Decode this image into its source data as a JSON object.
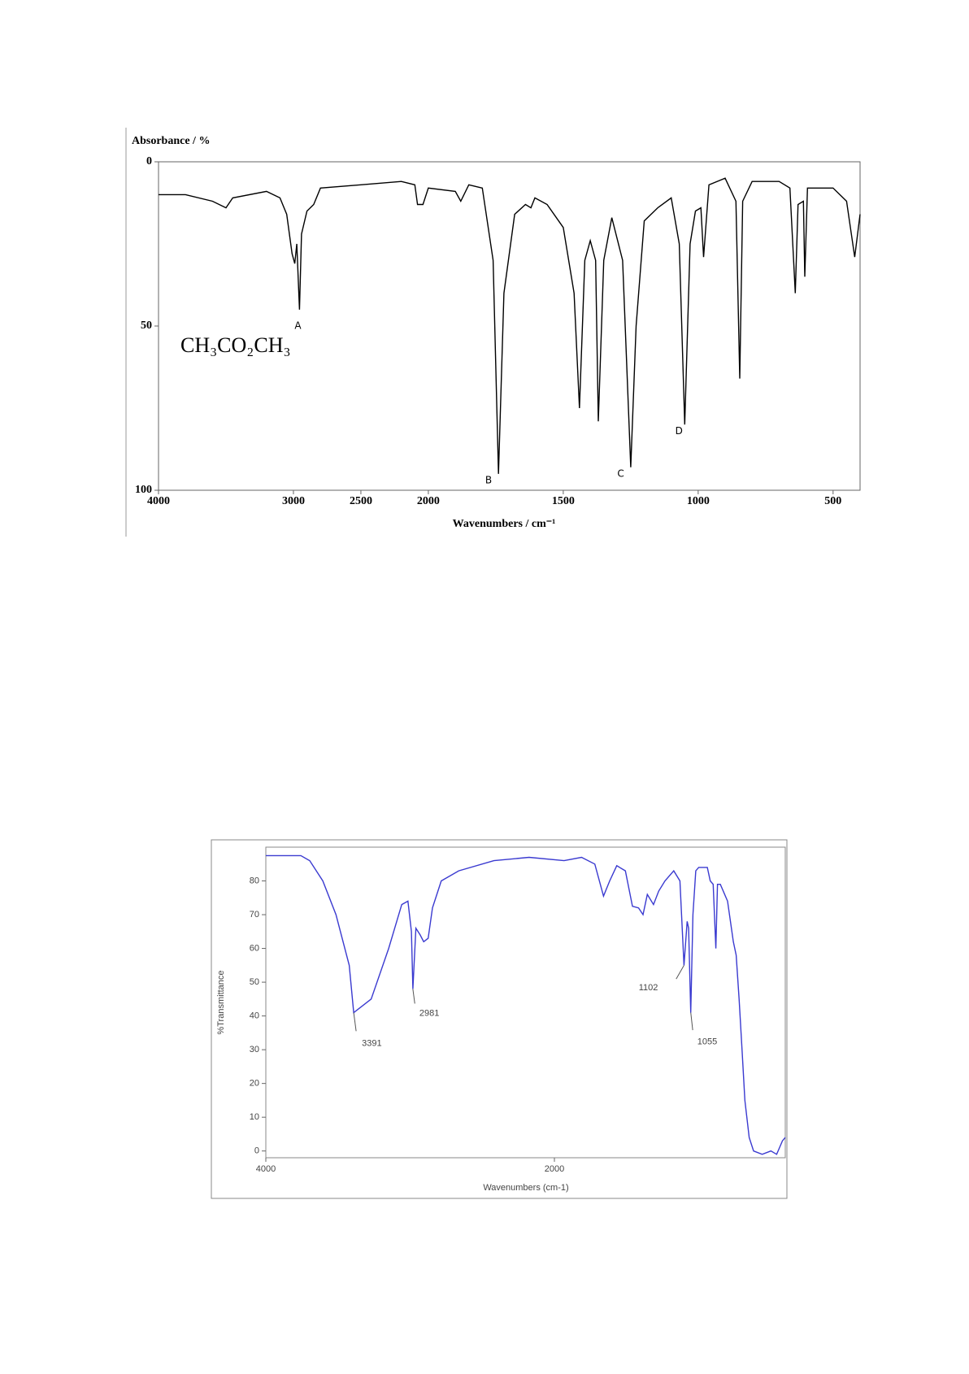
{
  "chart_data": [
    {
      "type": "line",
      "y_label": "Absorbance / %",
      "x_label": "Wavenumbers / cm⁻¹",
      "compound": "CH₃CO₂CH₃",
      "color": "#000000",
      "xlim": [
        4000,
        400
      ],
      "xbreak": 2000,
      "xticks": [
        4000,
        3000,
        2500,
        2000,
        1500,
        1000,
        500
      ],
      "ylim": [
        100,
        0
      ],
      "yticks": [
        0,
        50,
        100
      ],
      "x": [
        4000,
        3800,
        3600,
        3500,
        3450,
        3200,
        3100,
        3050,
        3010,
        2990,
        2975,
        2955,
        2940,
        2900,
        2850,
        2800,
        2500,
        2200,
        2100,
        2080,
        2040,
        2000,
        1900,
        1880,
        1850,
        1800,
        1760,
        1740,
        1720,
        1680,
        1640,
        1620,
        1605,
        1560,
        1500,
        1460,
        1440,
        1420,
        1400,
        1380,
        1370,
        1350,
        1320,
        1280,
        1250,
        1230,
        1200,
        1150,
        1100,
        1070,
        1050,
        1030,
        1010,
        990,
        980,
        960,
        900,
        860,
        846,
        835,
        800,
        700,
        660,
        640,
        630,
        610,
        605,
        595,
        500,
        450,
        420,
        400
      ],
      "values": [
        10,
        10,
        12,
        14,
        11,
        9,
        11,
        16,
        28,
        31,
        25,
        45,
        22,
        15,
        13,
        8,
        7,
        6,
        7,
        13,
        13,
        8,
        9,
        12,
        7,
        8,
        30,
        95,
        40,
        16,
        13,
        14,
        11,
        13,
        20,
        40,
        75,
        30,
        24,
        30,
        79,
        30,
        17,
        30,
        93,
        50,
        18,
        14,
        11,
        25,
        80,
        25,
        15,
        14,
        29,
        7,
        5,
        12,
        66,
        12,
        6,
        6,
        8,
        40,
        13,
        12,
        35,
        8,
        8,
        12,
        29,
        16
      ],
      "annotations": [
        {
          "text": "A",
          "x": 2967,
          "y": 50
        },
        {
          "text": "B",
          "x": 1777,
          "y": 97
        },
        {
          "text": "C",
          "x": 1287,
          "y": 95
        },
        {
          "text": "D",
          "x": 1071,
          "y": 82
        }
      ]
    },
    {
      "type": "line",
      "y_label": "%Transmittance",
      "x_label": "Wavenumbers (cm-1)",
      "color": "#3a3ad0",
      "xlim": [
        4000,
        400
      ],
      "xticks": [
        4000,
        2000
      ],
      "ylim": [
        -2,
        90
      ],
      "yticks": [
        0,
        10,
        20,
        30,
        40,
        50,
        60,
        70,
        80
      ],
      "x": [
        4000,
        3757,
        3696,
        3605,
        3514,
        3422,
        3391,
        3270,
        3149,
        3058,
        3015,
        2991,
        2981,
        2960,
        2930,
        2906,
        2875,
        2845,
        2784,
        2663,
        2419,
        2176,
        1933,
        1812,
        1720,
        1660,
        1617,
        1568,
        1508,
        1459,
        1417,
        1386,
        1356,
        1313,
        1277,
        1234,
        1173,
        1130,
        1102,
        1080,
        1070,
        1055,
        1040,
        1020,
        1000,
        940,
        920,
        900,
        881,
        870,
        850,
        800,
        760,
        740,
        720,
        700,
        680,
        650,
        620,
        560,
        500,
        460,
        420,
        400
      ],
      "values": [
        87.5,
        87.5,
        86,
        80,
        70,
        55,
        41,
        45,
        60,
        73,
        74,
        65,
        48,
        66,
        64,
        62,
        63,
        72,
        80,
        83,
        86,
        87,
        86,
        87,
        85,
        75.5,
        80,
        84.5,
        83,
        72.5,
        72,
        70,
        76,
        73,
        77,
        80,
        83,
        80,
        55,
        68,
        66,
        41,
        70,
        83,
        84,
        84,
        80,
        79,
        60,
        79,
        79,
        74,
        62,
        58,
        45,
        30,
        15,
        4,
        0,
        -1,
        0,
        -1,
        3,
        4
      ],
      "peak_labels": [
        3391,
        2981,
        1102,
        1055
      ]
    }
  ]
}
